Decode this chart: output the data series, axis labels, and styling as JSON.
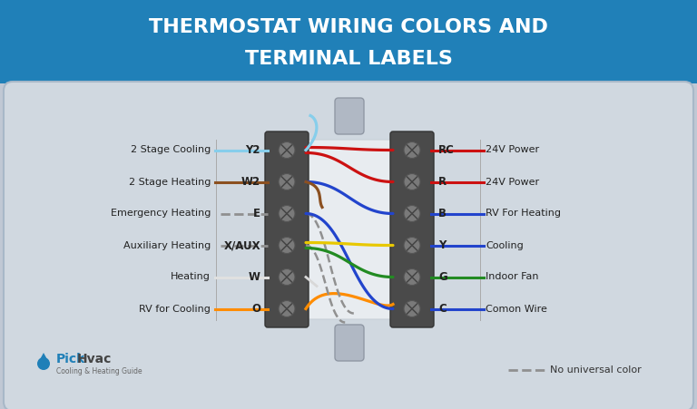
{
  "title_line1": "THERMOSTAT WIRING COLORS AND",
  "title_line2": "TERMINAL LABELS",
  "title_bg": "#2080b8",
  "title_text_color": "#ffffff",
  "body_bg": "#c0c8d4",
  "panel_bg": "#d0d8e0",
  "connector_bg": "#4a4a4a",
  "left_labels": [
    "2 Stage Cooling",
    "2 Stage Heating",
    "Emergency Heating",
    "Auxiliary Heating",
    "Heating",
    "RV for Cooling"
  ],
  "left_terminals": [
    "Y2",
    "W2",
    "E",
    "X/AUX",
    "W",
    "O"
  ],
  "right_terminals": [
    "RC",
    "R",
    "B",
    "Y",
    "G",
    "C"
  ],
  "right_labels": [
    "24V Power",
    "24V Power",
    "RV For Heating",
    "Cooling",
    "Indoor Fan",
    "Comon Wire"
  ],
  "logo_subtext": "Cooling & Heating Guide",
  "legend_text": "No universal color"
}
